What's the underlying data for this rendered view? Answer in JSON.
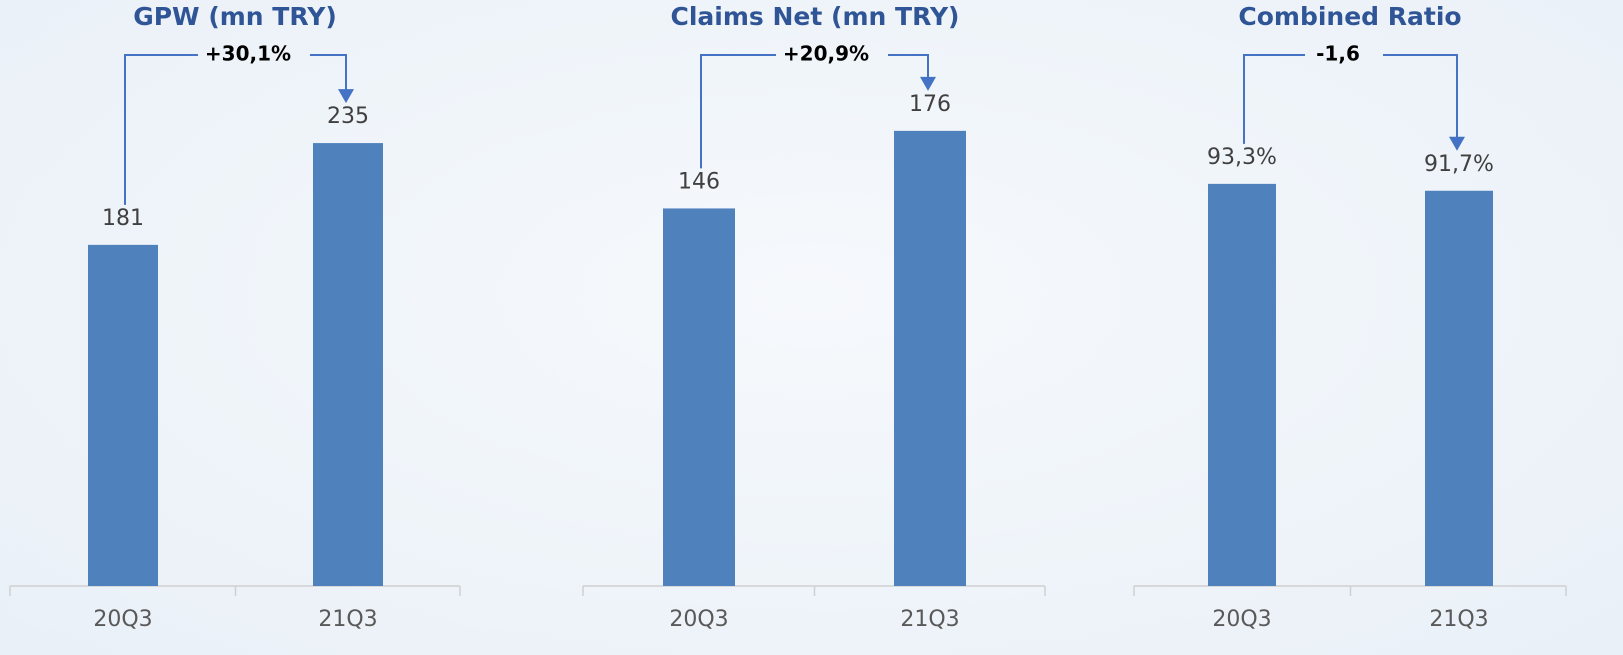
{
  "chart_data": [
    {
      "type": "bar",
      "title": "GPW (mn TRY)",
      "annotation": "+30,1%",
      "categories": [
        "20Q3",
        "21Q3"
      ],
      "values": [
        181,
        235
      ],
      "color": "#4f81bd",
      "ylim": [
        0,
        295
      ]
    },
    {
      "type": "bar",
      "title": "Claims Net (mn TRY)",
      "annotation": "+20,9%",
      "categories": [
        "20Q3",
        "21Q3"
      ],
      "values": [
        146,
        176
      ],
      "color": "#4f81bd",
      "ylim": [
        0,
        215
      ]
    },
    {
      "type": "bar",
      "title": "Combined Ratio",
      "annotation": "-1,6",
      "categories": [
        "20Q3",
        "21Q3"
      ],
      "values": [
        93.3,
        91.7
      ],
      "value_labels": [
        "93,3%",
        "91,7%"
      ],
      "color": "#4f81bd",
      "ylim": [
        0,
        129
      ]
    }
  ]
}
